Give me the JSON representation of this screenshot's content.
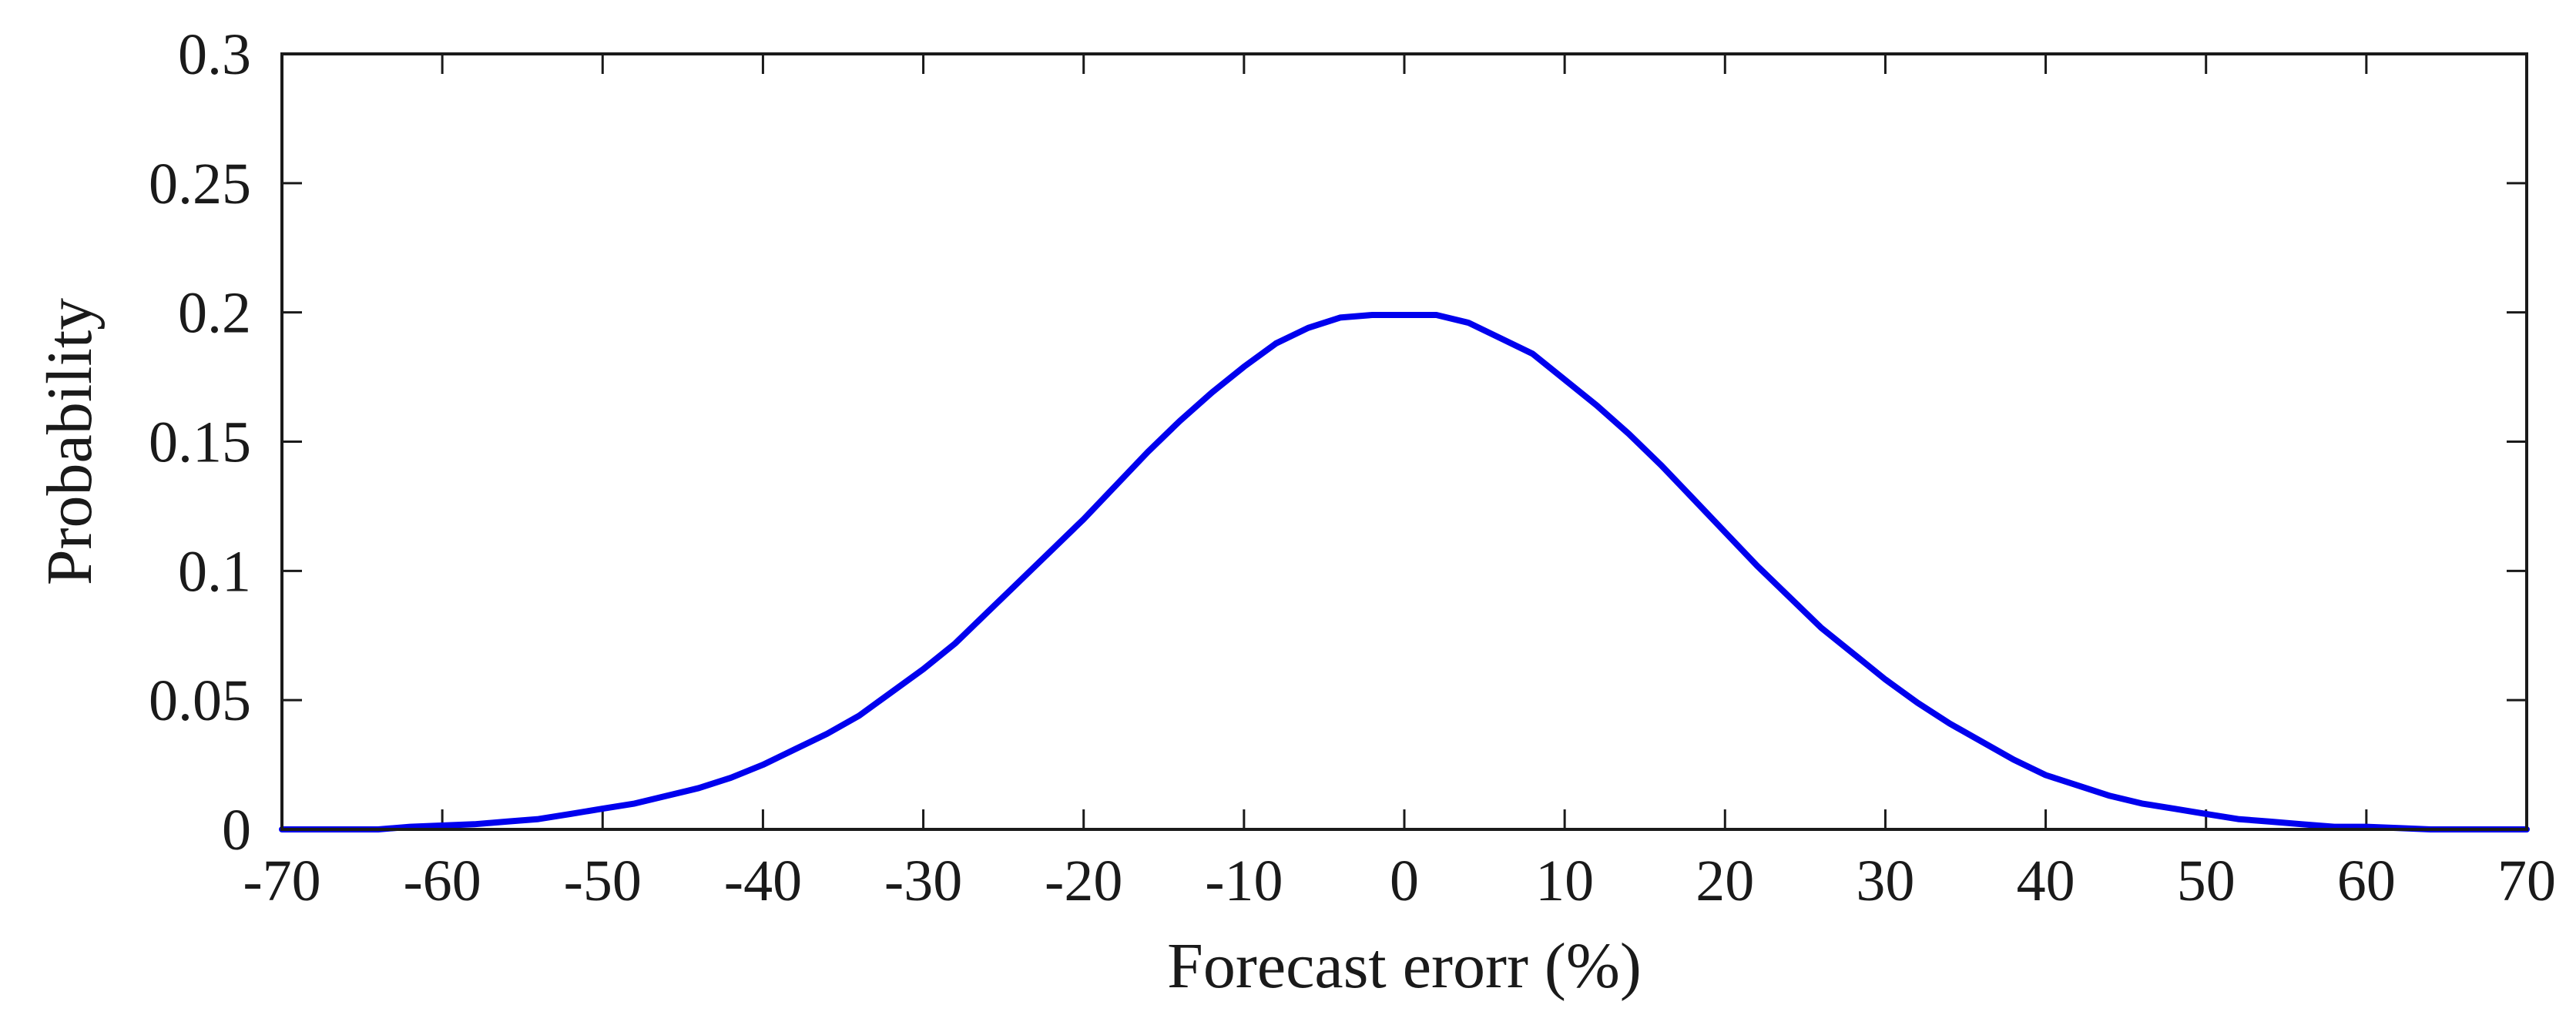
{
  "chart_data": {
    "type": "line",
    "xlabel": "Forecast erorr (%)",
    "ylabel": "Probability",
    "xlim": [
      -70,
      70
    ],
    "ylim": [
      0,
      0.3
    ],
    "xticks": [
      -70,
      -60,
      -50,
      -40,
      -30,
      -20,
      -10,
      0,
      10,
      20,
      30,
      40,
      50,
      60,
      70
    ],
    "yticks": [
      0,
      0.05,
      0.1,
      0.15,
      0.2,
      0.25,
      0.3
    ],
    "grid": false,
    "line_color": "#0000ee",
    "series": [
      {
        "x": [
          -70,
          -64,
          -62,
          -58,
          -56,
          -54,
          -52,
          -50,
          -48,
          -46,
          -44,
          -42,
          -40,
          -38,
          -36,
          -34,
          -32,
          -30,
          -28,
          -26,
          -24,
          -22,
          -20,
          -18,
          -16,
          -14,
          -12,
          -10,
          -8,
          -6,
          -4,
          -2,
          0,
          2,
          4,
          6,
          8,
          10,
          12,
          14,
          16,
          18,
          20,
          22,
          24,
          26,
          28,
          30,
          32,
          34,
          36,
          38,
          40,
          42,
          44,
          46,
          48,
          50,
          52,
          54,
          56,
          58,
          60,
          62,
          64,
          70
        ],
        "values": [
          0,
          0,
          0.001,
          0.002,
          0.003,
          0.004,
          0.006,
          0.008,
          0.01,
          0.013,
          0.016,
          0.02,
          0.025,
          0.031,
          0.037,
          0.044,
          0.053,
          0.062,
          0.072,
          0.084,
          0.096,
          0.108,
          0.12,
          0.133,
          0.146,
          0.158,
          0.169,
          0.179,
          0.188,
          0.194,
          0.198,
          0.199,
          0.199,
          0.199,
          0.196,
          0.19,
          0.184,
          0.174,
          0.164,
          0.153,
          0.141,
          0.128,
          0.115,
          0.102,
          0.09,
          0.078,
          0.068,
          0.058,
          0.049,
          0.041,
          0.034,
          0.027,
          0.021,
          0.017,
          0.013,
          0.01,
          0.008,
          0.006,
          0.004,
          0.003,
          0.002,
          0.001,
          0.001,
          0.0005,
          0,
          0
        ]
      }
    ]
  }
}
